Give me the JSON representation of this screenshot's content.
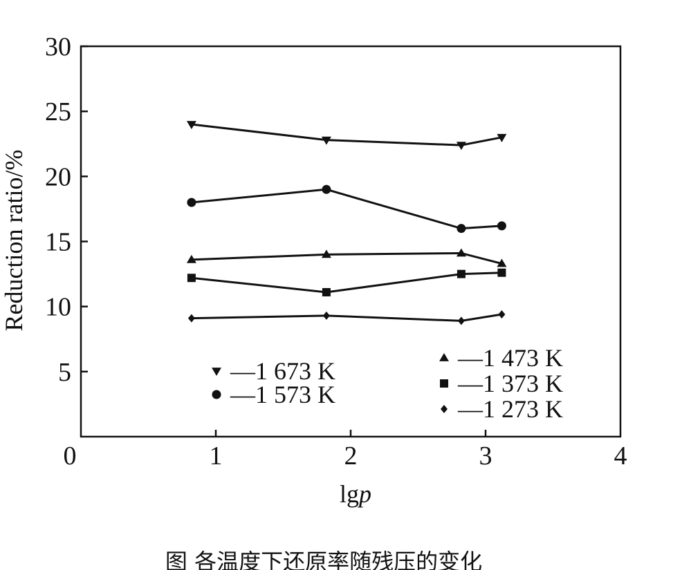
{
  "chart_data": {
    "type": "line",
    "xlabel_prefix": "lg",
    "xlabel_var": "p",
    "ylabel": "Reduction ratio/%",
    "xlim": [
      0,
      4
    ],
    "ylim": [
      0,
      30
    ],
    "x_ticks": [
      {
        "value": 0,
        "label": "0"
      },
      {
        "value": 1,
        "label": "1"
      },
      {
        "value": 2,
        "label": "2"
      },
      {
        "value": 3,
        "label": "3"
      },
      {
        "value": 4,
        "label": "4"
      }
    ],
    "y_ticks": [
      {
        "value": 5,
        "label": "5"
      },
      {
        "value": 10,
        "label": "10"
      },
      {
        "value": 15,
        "label": "15"
      },
      {
        "value": 20,
        "label": "20"
      },
      {
        "value": 25,
        "label": "25"
      },
      {
        "value": 30,
        "label": "30"
      }
    ],
    "x": [
      0.82,
      1.82,
      2.82,
      3.12
    ],
    "series": [
      {
        "name": "1 673 K",
        "legend_label": "—1 673 K",
        "marker": "triangle-down",
        "values": [
          24.0,
          22.8,
          22.4,
          23.0
        ]
      },
      {
        "name": "1 573 K",
        "legend_label": "—1 573 K",
        "marker": "circle",
        "values": [
          18.0,
          19.0,
          16.0,
          16.2
        ]
      },
      {
        "name": "1 473 K",
        "legend_label": "—1 473 K",
        "marker": "triangle-up",
        "values": [
          13.6,
          14.0,
          14.1,
          13.3
        ]
      },
      {
        "name": "1 373 K",
        "legend_label": "—1 373 K",
        "marker": "square",
        "values": [
          12.2,
          11.1,
          12.5,
          12.6
        ]
      },
      {
        "name": "1 273 K",
        "legend_label": "—1 273 K",
        "marker": "diamond",
        "values": [
          9.1,
          9.3,
          8.9,
          9.4
        ]
      }
    ],
    "legend": "bottom",
    "grid": false,
    "caption": "图  各温度下还原率随残压的变化"
  }
}
